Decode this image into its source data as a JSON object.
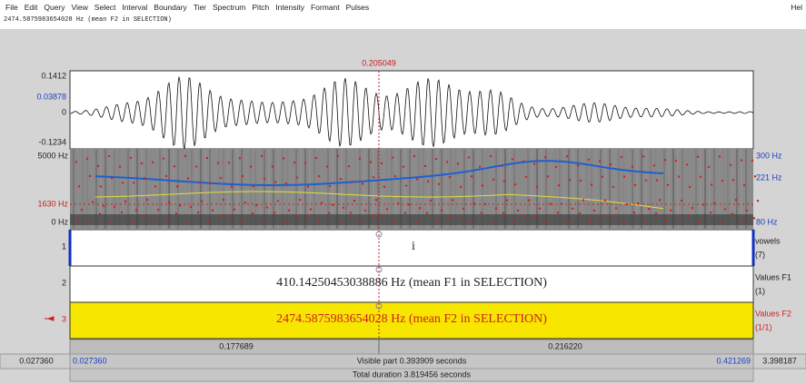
{
  "menu": {
    "items": [
      "File",
      "Edit",
      "Query",
      "View",
      "Select",
      "Interval",
      "Boundary",
      "Tier",
      "Spectrum",
      "Pitch",
      "Intensity",
      "Formant",
      "Pulses"
    ],
    "help": "Hel"
  },
  "info_line": "2474.5875983654028 Hz (mean F2 in SELECTION)",
  "cursor_time": "0.205049",
  "waveform": {
    "top": "0.1412",
    "cursor_value": "0.03878",
    "zero": "0",
    "bottom": "-0.1234"
  },
  "spectrogram": {
    "top": "5000 Hz",
    "cursor_value": "1630 Hz",
    "bottom": "0 Hz",
    "pitch_top": "300 Hz",
    "pitch_cursor": "221 Hz",
    "pitch_bottom": "80 Hz"
  },
  "tiers": [
    {
      "number": "1",
      "text": "i",
      "name": "vowels",
      "count": "(7)"
    },
    {
      "number": "2",
      "text": "410.14250453038886 Hz (mean F1 in SELECTION)",
      "name": "Values F1",
      "count": "(1)"
    },
    {
      "number": "3",
      "text": "2474.5875983654028 Hz (mean F2 in SELECTION)",
      "name": "Values F2",
      "count": "(1/1)"
    }
  ],
  "time_bar": {
    "left_interval": "0.177689",
    "right_interval": "0.216220",
    "window_start": "0.027360",
    "visible_start": "0.027360",
    "visible_part": "Visible part 0.393909 seconds",
    "visible_end": "0.421269",
    "window_end": "3.398187",
    "total": "Total duration 3.819456 seconds"
  }
}
